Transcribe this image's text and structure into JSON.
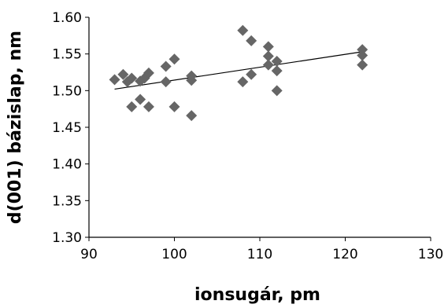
{
  "chart_data": {
    "type": "scatter",
    "xlabel": "ionsugár, pm",
    "ylabel": "d(001) bázislap, nm",
    "xlim": [
      90,
      130
    ],
    "ylim": [
      1.3,
      1.6
    ],
    "x_ticks": [
      "90",
      "100",
      "110",
      "120",
      "130"
    ],
    "y_ticks": [
      "1.30",
      "1.35",
      "1.40",
      "1.45",
      "1.50",
      "1.55",
      "1.60"
    ],
    "grid": false,
    "marker": "diamond",
    "marker_color": "#666666",
    "series": [
      {
        "points": [
          [
            93,
            1.515
          ],
          [
            94,
            1.522
          ],
          [
            94.5,
            1.512
          ],
          [
            95,
            1.517
          ],
          [
            95,
            1.478
          ],
          [
            96,
            1.513
          ],
          [
            96,
            1.488
          ],
          [
            96.5,
            1.517
          ],
          [
            97,
            1.524
          ],
          [
            97,
            1.478
          ],
          [
            99,
            1.533
          ],
          [
            99,
            1.512
          ],
          [
            100,
            1.543
          ],
          [
            100,
            1.478
          ],
          [
            102,
            1.52
          ],
          [
            102,
            1.514
          ],
          [
            102,
            1.466
          ],
          [
            108,
            1.582
          ],
          [
            108,
            1.512
          ],
          [
            109,
            1.568
          ],
          [
            109,
            1.522
          ],
          [
            111,
            1.56
          ],
          [
            111,
            1.547
          ],
          [
            111,
            1.535
          ],
          [
            112,
            1.54
          ],
          [
            112,
            1.527
          ],
          [
            112,
            1.5
          ],
          [
            122,
            1.556
          ],
          [
            122,
            1.548
          ],
          [
            122,
            1.535
          ]
        ]
      }
    ],
    "trendline": {
      "x": [
        93,
        122
      ],
      "y": [
        1.502,
        1.553
      ],
      "color": "#000000"
    }
  }
}
